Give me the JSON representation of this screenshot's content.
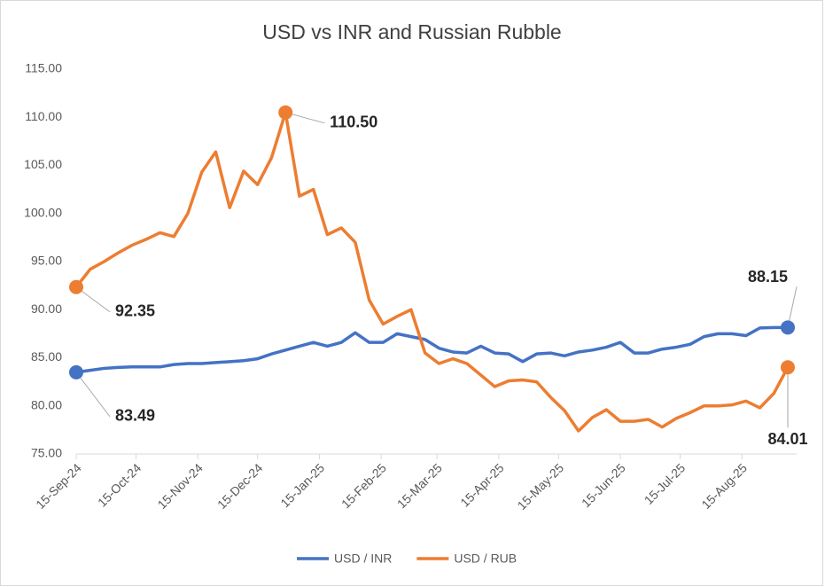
{
  "chart_data": {
    "type": "line",
    "title": "USD vs INR and Russian Rubble",
    "x": [
      "2024-09-15",
      "2024-09-22",
      "2024-09-29",
      "2024-10-06",
      "2024-10-13",
      "2024-10-20",
      "2024-10-27",
      "2024-11-03",
      "2024-11-10",
      "2024-11-17",
      "2024-11-24",
      "2024-12-01",
      "2024-12-08",
      "2024-12-15",
      "2024-12-22",
      "2024-12-29",
      "2025-01-05",
      "2025-01-12",
      "2025-01-19",
      "2025-01-26",
      "2025-02-02",
      "2025-02-09",
      "2025-02-16",
      "2025-02-23",
      "2025-03-02",
      "2025-03-09",
      "2025-03-16",
      "2025-03-23",
      "2025-03-30",
      "2025-04-06",
      "2025-04-13",
      "2025-04-20",
      "2025-04-27",
      "2025-05-04",
      "2025-05-11",
      "2025-05-18",
      "2025-05-25",
      "2025-06-01",
      "2025-06-08",
      "2025-06-15",
      "2025-06-22",
      "2025-06-29",
      "2025-07-06",
      "2025-07-13",
      "2025-07-20",
      "2025-07-27",
      "2025-08-03",
      "2025-08-10",
      "2025-08-17",
      "2025-08-24",
      "2025-08-31",
      "2025-09-07"
    ],
    "series": [
      {
        "name": "USD / INR",
        "color": "#4472c4",
        "values": [
          83.49,
          83.7,
          83.9,
          84.0,
          84.05,
          84.05,
          84.05,
          84.3,
          84.4,
          84.4,
          84.5,
          84.6,
          84.7,
          84.9,
          85.4,
          85.8,
          86.2,
          86.6,
          86.2,
          86.6,
          87.6,
          86.6,
          86.6,
          87.5,
          87.2,
          86.9,
          86.0,
          85.6,
          85.5,
          86.2,
          85.5,
          85.4,
          84.6,
          85.4,
          85.5,
          85.2,
          85.6,
          85.8,
          86.1,
          86.6,
          85.5,
          85.5,
          85.9,
          86.1,
          86.4,
          87.2,
          87.5,
          87.5,
          87.3,
          88.1,
          88.15,
          88.15
        ],
        "value_labels": [
          "83.49",
          null,
          null,
          null,
          null,
          null,
          null,
          null,
          null,
          null,
          null,
          null,
          null,
          null,
          null,
          null,
          null,
          null,
          null,
          null,
          null,
          null,
          null,
          null,
          null,
          null,
          null,
          null,
          null,
          null,
          null,
          null,
          null,
          null,
          null,
          null,
          null,
          null,
          null,
          null,
          null,
          null,
          null,
          null,
          null,
          null,
          null,
          null,
          null,
          null,
          null,
          "88.15"
        ]
      },
      {
        "name": "USD / RUB",
        "color": "#ed7d31",
        "values": [
          92.35,
          94.2,
          95.0,
          95.9,
          96.7,
          97.3,
          98.0,
          97.6,
          100.0,
          104.3,
          106.4,
          100.6,
          104.4,
          103.0,
          105.8,
          110.5,
          101.8,
          102.5,
          97.8,
          98.5,
          97.0,
          91.0,
          88.5,
          89.3,
          90.0,
          85.5,
          84.4,
          84.9,
          84.4,
          83.2,
          82.0,
          82.6,
          82.7,
          82.5,
          80.9,
          79.5,
          77.4,
          78.8,
          79.6,
          78.4,
          78.4,
          78.6,
          77.8,
          78.7,
          79.3,
          80.0,
          80.0,
          80.1,
          80.5,
          79.8,
          81.3,
          84.01
        ],
        "value_labels": [
          "92.35",
          null,
          null,
          null,
          null,
          null,
          null,
          null,
          null,
          null,
          null,
          null,
          null,
          null,
          null,
          "110.50",
          null,
          null,
          null,
          null,
          null,
          null,
          null,
          null,
          null,
          null,
          null,
          null,
          null,
          null,
          null,
          null,
          null,
          null,
          null,
          null,
          null,
          null,
          null,
          null,
          null,
          null,
          null,
          null,
          null,
          null,
          null,
          null,
          null,
          null,
          null,
          "84.01"
        ]
      }
    ],
    "xlim": [
      "2024-09-15",
      "2025-09-07"
    ],
    "xticks": [
      {
        "value": "2024-09-15",
        "label": "15-Sep-24"
      },
      {
        "value": "2024-10-15",
        "label": "15-Oct-24"
      },
      {
        "value": "2024-11-15",
        "label": "15-Nov-24"
      },
      {
        "value": "2024-12-15",
        "label": "15-Dec-24"
      },
      {
        "value": "2025-01-15",
        "label": "15-Jan-25"
      },
      {
        "value": "2025-02-15",
        "label": "15-Feb-25"
      },
      {
        "value": "2025-03-15",
        "label": "15-Mar-25"
      },
      {
        "value": "2025-04-15",
        "label": "15-Apr-25"
      },
      {
        "value": "2025-05-15",
        "label": "15-May-25"
      },
      {
        "value": "2025-06-15",
        "label": "15-Jun-25"
      },
      {
        "value": "2025-07-15",
        "label": "15-Jul-25"
      },
      {
        "value": "2025-08-15",
        "label": "15-Aug-25"
      }
    ],
    "ylim": [
      75,
      115
    ],
    "yticks": [
      {
        "value": 75,
        "label": "75.00"
      },
      {
        "value": 80,
        "label": "80.00"
      },
      {
        "value": 85,
        "label": "85.00"
      },
      {
        "value": 90,
        "label": "90.00"
      },
      {
        "value": 95,
        "label": "95.00"
      },
      {
        "value": 100,
        "label": "100.00"
      },
      {
        "value": 105,
        "label": "105.00"
      },
      {
        "value": 110,
        "label": "110.00"
      },
      {
        "value": 115,
        "label": "115.00"
      }
    ],
    "grid": false,
    "legend": "bottom"
  }
}
